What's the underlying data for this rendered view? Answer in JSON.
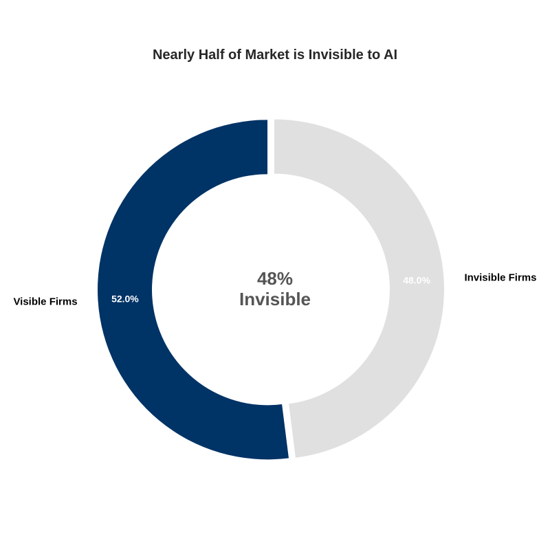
{
  "chart_data": {
    "type": "pie",
    "title": "Nearly Half of Market is Invisible to AI",
    "categories": [
      "Visible Firms",
      "Invisible Firms"
    ],
    "values": [
      52.0,
      48.0
    ],
    "value_labels": [
      "52.0%",
      "48.0%"
    ],
    "colors": [
      "#003366",
      "#e0e0e0"
    ],
    "hole": true,
    "center_text": [
      "48%",
      "Invisible"
    ],
    "legend": "none"
  }
}
